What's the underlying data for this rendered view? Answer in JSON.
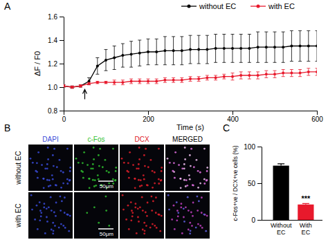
{
  "chart_data": [
    {
      "type": "line",
      "title": "A",
      "x_label": "Time (s)",
      "y_label": "ΔF / F0",
      "x": [
        0,
        20,
        40,
        60,
        80,
        100,
        120,
        140,
        160,
        180,
        200,
        220,
        240,
        260,
        280,
        300,
        320,
        340,
        360,
        380,
        400,
        420,
        440,
        460,
        480,
        500,
        520,
        540,
        560,
        580,
        600
      ],
      "xlim": [
        0,
        600
      ],
      "xticks": [
        0,
        200,
        400,
        600
      ],
      "ylim": [
        0.8,
        1.6
      ],
      "yticks": [
        0.8,
        {
          "value": 1.0,
          "label": "1.0"
        },
        1.2,
        1.4,
        1.6
      ],
      "legend": "top",
      "marker": "circle",
      "arrow": {
        "x": 50,
        "y": 0.98
      },
      "series": [
        {
          "name": "without EC",
          "color": "#000000",
          "values": [
            1.01,
            1.0,
            1.01,
            1.05,
            1.18,
            1.23,
            1.25,
            1.27,
            1.28,
            1.29,
            1.3,
            1.3,
            1.31,
            1.31,
            1.31,
            1.32,
            1.32,
            1.32,
            1.33,
            1.33,
            1.33,
            1.33,
            1.33,
            1.34,
            1.34,
            1.34,
            1.34,
            1.35,
            1.35,
            1.35,
            1.35
          ],
          "errors": [
            0.01,
            0.01,
            0.01,
            0.03,
            0.07,
            0.09,
            0.1,
            0.1,
            0.11,
            0.11,
            0.11,
            0.11,
            0.12,
            0.12,
            0.12,
            0.12,
            0.12,
            0.12,
            0.12,
            0.12,
            0.12,
            0.12,
            0.12,
            0.13,
            0.13,
            0.13,
            0.13,
            0.13,
            0.13,
            0.13,
            0.13
          ]
        },
        {
          "name": "with EC",
          "color": "#e8192c",
          "values": [
            1.01,
            1.0,
            1.01,
            1.03,
            1.04,
            1.04,
            1.04,
            1.04,
            1.05,
            1.05,
            1.05,
            1.05,
            1.06,
            1.06,
            1.06,
            1.07,
            1.07,
            1.08,
            1.08,
            1.09,
            1.09,
            1.1,
            1.1,
            1.1,
            1.11,
            1.11,
            1.12,
            1.12,
            1.12,
            1.13,
            1.13
          ],
          "errors": [
            0.01,
            0.01,
            0.01,
            0.01,
            0.01,
            0.01,
            0.02,
            0.02,
            0.02,
            0.02,
            0.02,
            0.02,
            0.02,
            0.02,
            0.02,
            0.02,
            0.02,
            0.02,
            0.02,
            0.02,
            0.03,
            0.03,
            0.03,
            0.03,
            0.03,
            0.03,
            0.03,
            0.03,
            0.03,
            0.03,
            0.03
          ]
        }
      ]
    },
    {
      "type": "image_grid",
      "title": "B",
      "columns": [
        "DAPI",
        "c-Fos",
        "DCX",
        "MERGED"
      ],
      "colors": [
        "#3a4bd8",
        "#2fbf2f",
        "#e0202a",
        "#000000"
      ],
      "rows": [
        "without EC",
        "with EC"
      ],
      "scale_bars": [
        "50μm",
        "50μm"
      ]
    },
    {
      "type": "bar",
      "title": "C",
      "categories": [
        "Without EC",
        "With EC"
      ],
      "values": [
        74,
        21
      ],
      "errors": [
        2.5,
        1.2
      ],
      "colors": [
        "#000000",
        "#e8192c"
      ],
      "y_label": "c-Fos+ve / DCX+ve cells (%)",
      "ylim": [
        0,
        100
      ],
      "yticks": [
        0,
        50,
        100
      ],
      "annotations": [
        {
          "text": "***",
          "x": "With EC"
        }
      ]
    }
  ]
}
